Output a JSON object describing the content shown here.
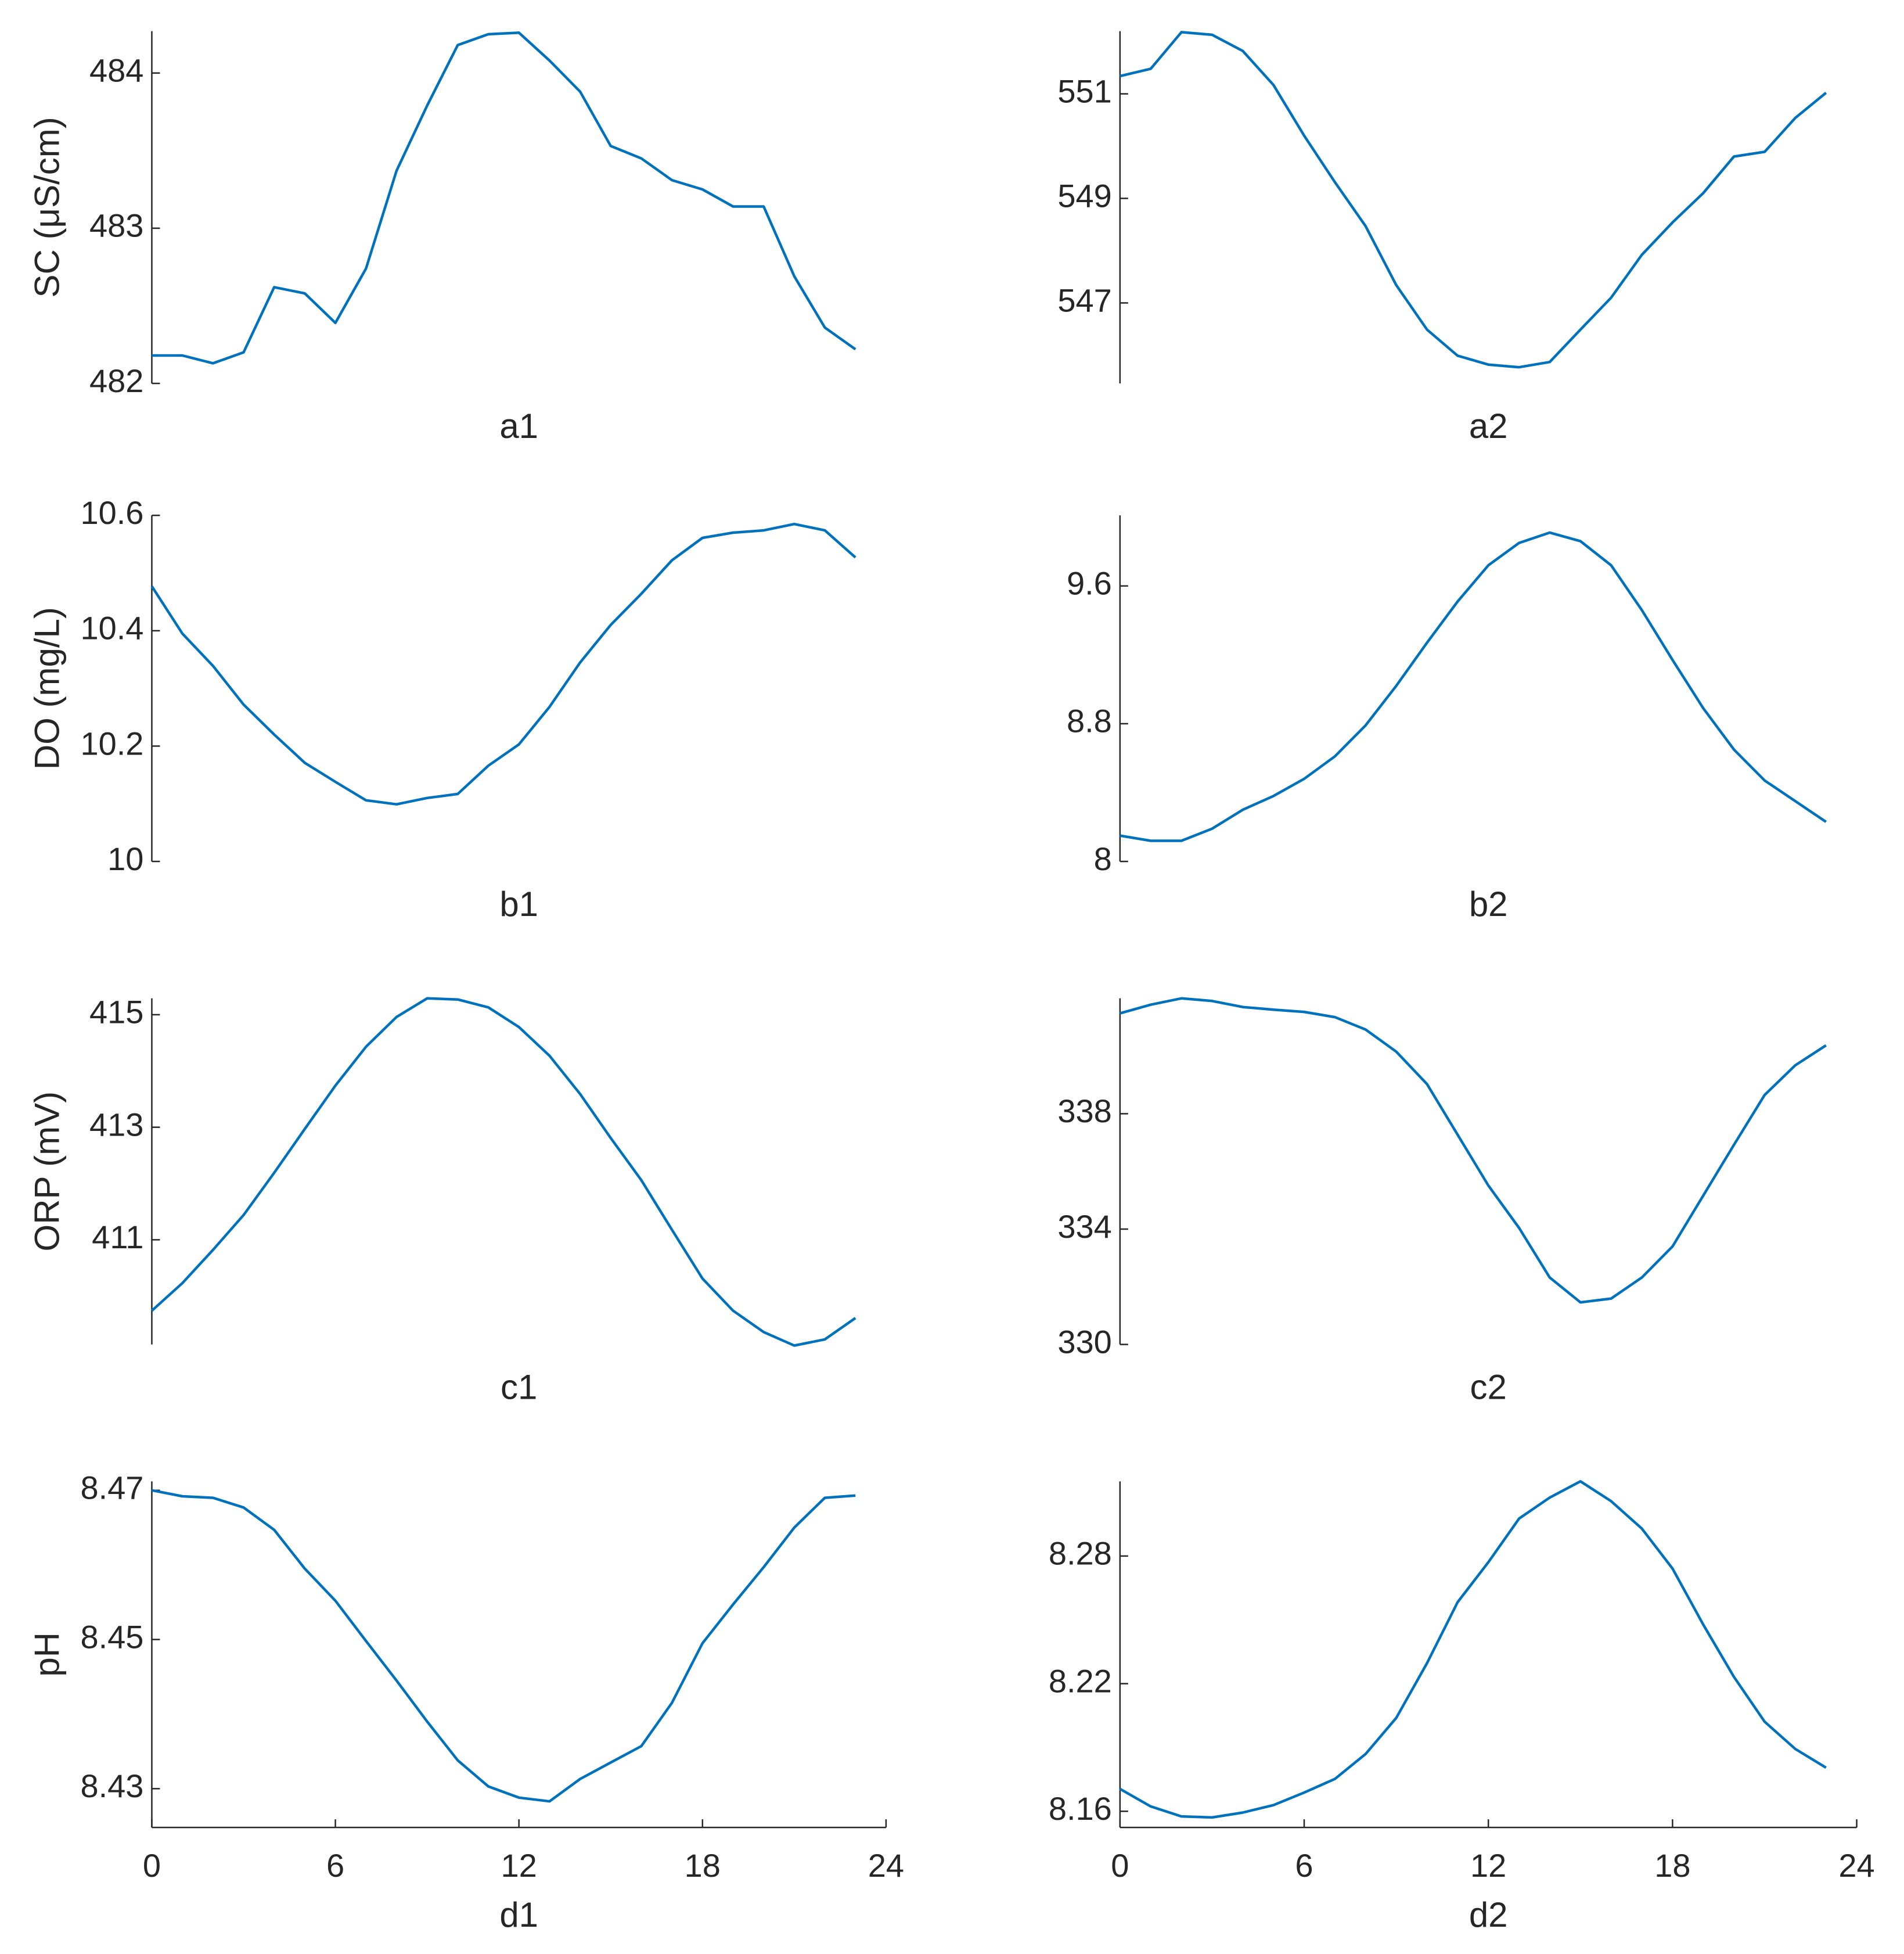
{
  "chart_data": [
    {
      "type": "line",
      "ylabel": "SC (μS/cm)",
      "xlabel": "a1",
      "x": [
        0,
        1,
        2,
        3,
        4,
        5,
        6,
        7,
        8,
        9,
        10,
        11,
        12,
        13,
        14,
        15,
        16,
        17,
        18,
        19,
        20,
        21,
        22,
        23
      ],
      "xlim": [
        0,
        24
      ],
      "ylim": [
        482,
        484.27
      ],
      "yticks": [
        482,
        483,
        484
      ],
      "color": "#0072bd",
      "values": [
        482.18,
        482.18,
        482.13,
        482.2,
        482.62,
        482.58,
        482.39,
        482.74,
        483.37,
        483.79,
        484.18,
        484.25,
        484.26,
        484.08,
        483.88,
        483.53,
        483.45,
        483.31,
        483.25,
        483.14,
        483.14,
        482.69,
        482.36,
        482.22
      ]
    },
    {
      "type": "line",
      "xlabel": "a2",
      "x": [
        0,
        1,
        2,
        3,
        4,
        5,
        6,
        7,
        8,
        9,
        10,
        11,
        12,
        13,
        14,
        15,
        16,
        17,
        18,
        19,
        20,
        21,
        22,
        23
      ],
      "xlim": [
        0,
        24
      ],
      "ylim": [
        545.46,
        552.2
      ],
      "yticks": [
        547,
        549,
        551
      ],
      "color": "#0072bd",
      "values": [
        551.34,
        551.48,
        552.18,
        552.13,
        551.82,
        551.17,
        550.2,
        549.31,
        548.47,
        547.34,
        546.49,
        545.99,
        545.82,
        545.77,
        545.87,
        546.49,
        547.1,
        547.92,
        548.54,
        549.1,
        549.8,
        549.89,
        550.54,
        551.02
      ]
    },
    {
      "type": "line",
      "ylabel": "DO (mg/L)",
      "xlabel": "b1",
      "x": [
        0,
        1,
        2,
        3,
        4,
        5,
        6,
        7,
        8,
        9,
        10,
        11,
        12,
        13,
        14,
        15,
        16,
        17,
        18,
        19,
        20,
        21,
        22,
        23
      ],
      "xlim": [
        0,
        24
      ],
      "ylim": [
        10,
        10.6
      ],
      "yticks": [
        10,
        10.2,
        10.4,
        10.6
      ],
      "color": "#0072bd",
      "values": [
        10.477,
        10.395,
        10.339,
        10.272,
        10.22,
        10.171,
        10.138,
        10.106,
        10.099,
        10.11,
        10.117,
        10.166,
        10.203,
        10.268,
        10.345,
        10.41,
        10.464,
        10.522,
        10.561,
        10.57,
        10.574,
        10.585,
        10.574,
        10.527
      ]
    },
    {
      "type": "line",
      "xlabel": "b2",
      "x": [
        0,
        1,
        2,
        3,
        4,
        5,
        6,
        7,
        8,
        9,
        10,
        11,
        12,
        13,
        14,
        15,
        16,
        17,
        18,
        19,
        20,
        21,
        22,
        23
      ],
      "xlim": [
        0,
        24
      ],
      "ylim": [
        8,
        10.01
      ],
      "yticks": [
        8,
        8.8,
        9.6
      ],
      "color": "#0072bd",
      "values": [
        8.15,
        8.12,
        8.12,
        8.19,
        8.3,
        8.38,
        8.48,
        8.61,
        8.79,
        9.02,
        9.27,
        9.51,
        9.72,
        9.85,
        9.91,
        9.86,
        9.72,
        9.46,
        9.17,
        8.89,
        8.65,
        8.47,
        8.35,
        8.23
      ]
    },
    {
      "type": "line",
      "ylabel": "ORP (mV)",
      "xlabel": "c1",
      "x": [
        0,
        1,
        2,
        3,
        4,
        5,
        6,
        7,
        8,
        9,
        10,
        11,
        12,
        13,
        14,
        15,
        16,
        17,
        18,
        19,
        20,
        21,
        22,
        23
      ],
      "xlim": [
        0,
        24
      ],
      "ylim": [
        409.14,
        415.29
      ],
      "yticks": [
        411,
        413,
        415
      ],
      "color": "#0072bd",
      "values": [
        409.74,
        410.23,
        410.82,
        411.44,
        412.19,
        412.97,
        413.74,
        414.43,
        414.96,
        415.29,
        415.27,
        415.13,
        414.78,
        414.27,
        413.59,
        412.81,
        412.06,
        411.18,
        410.31,
        409.74,
        409.36,
        409.12,
        409.23,
        409.61
      ]
    },
    {
      "type": "line",
      "xlabel": "c2",
      "x": [
        0,
        1,
        2,
        3,
        4,
        5,
        6,
        7,
        8,
        9,
        10,
        11,
        12,
        13,
        14,
        15,
        16,
        17,
        18,
        19,
        20,
        21,
        22,
        23
      ],
      "xlim": [
        0,
        24
      ],
      "ylim": [
        330,
        342
      ],
      "yticks": [
        330,
        334,
        338
      ],
      "color": "#0072bd",
      "values": [
        341.48,
        341.78,
        342.0,
        341.91,
        341.7,
        341.61,
        341.53,
        341.35,
        340.92,
        340.15,
        339.03,
        337.27,
        335.51,
        334.04,
        332.32,
        331.46,
        331.59,
        332.32,
        333.4,
        335.16,
        336.92,
        338.65,
        339.68,
        340.37
      ]
    },
    {
      "type": "line",
      "ylabel": "pH",
      "xlabel": "d1",
      "x": [
        0,
        1,
        2,
        3,
        4,
        5,
        6,
        7,
        8,
        9,
        10,
        11,
        12,
        13,
        14,
        15,
        16,
        17,
        18,
        19,
        20,
        21,
        22,
        23
      ],
      "xlim": [
        0,
        24
      ],
      "xticks": [
        0,
        6,
        12,
        18,
        24
      ],
      "ylim": [
        8.4248,
        8.4712
      ],
      "yticks": [
        8.43,
        8.45,
        8.47
      ],
      "color": "#0072bd",
      "values": [
        8.47,
        8.4692,
        8.469,
        8.4677,
        8.4647,
        8.4595,
        8.4552,
        8.4498,
        8.4445,
        8.439,
        8.4338,
        8.4303,
        8.4288,
        8.4283,
        8.4313,
        8.4335,
        8.4357,
        8.4415,
        8.4495,
        8.4547,
        8.4597,
        8.465,
        8.469,
        8.4693
      ]
    },
    {
      "type": "line",
      "xlabel": "d2",
      "x": [
        0,
        1,
        2,
        3,
        4,
        5,
        6,
        7,
        8,
        9,
        10,
        11,
        12,
        13,
        14,
        15,
        16,
        17,
        18,
        19,
        20,
        21,
        22,
        23
      ],
      "xlim": [
        0,
        24
      ],
      "xticks": [
        0,
        6,
        12,
        18,
        24
      ],
      "ylim": [
        8.1524,
        8.3151
      ],
      "yticks": [
        8.16,
        8.22,
        8.28
      ],
      "color": "#0072bd",
      "values": [
        8.1705,
        8.1623,
        8.1576,
        8.1571,
        8.1594,
        8.1629,
        8.1688,
        8.1752,
        8.1869,
        8.2039,
        8.2296,
        8.2583,
        8.2771,
        8.2976,
        8.3075,
        8.3151,
        8.3058,
        8.2929,
        8.2741,
        8.2478,
        8.2232,
        8.2021,
        8.1893,
        8.1805
      ]
    }
  ]
}
